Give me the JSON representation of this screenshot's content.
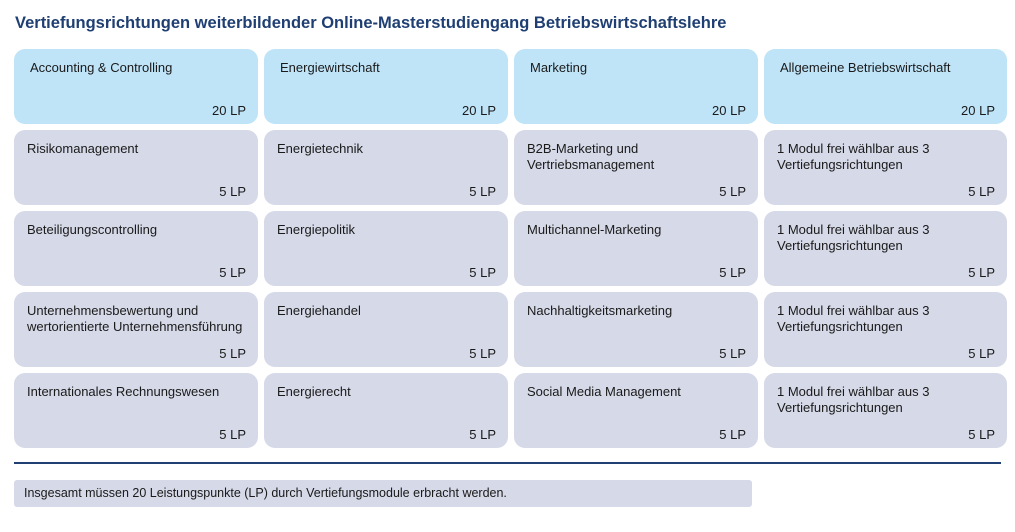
{
  "title": "Vertiefungsrichtungen weiterbildender Online-Masterstudiengang Betriebswirtschaftslehre",
  "columns": [
    {
      "header": {
        "name": "Accounting & Controlling",
        "lp": "20 LP"
      },
      "modules": [
        {
          "name": "Risikomanagement",
          "lp": "5 LP"
        },
        {
          "name": "Beteiligungscontrolling",
          "lp": "5 LP"
        },
        {
          "name": "Unternehmensbewertung und wertorientierte Unternehmensführung",
          "lp": "5 LP"
        },
        {
          "name": "Internationales Rechnungswesen",
          "lp": "5 LP"
        }
      ]
    },
    {
      "header": {
        "name": "Energiewirtschaft",
        "lp": "20 LP"
      },
      "modules": [
        {
          "name": "Energietechnik",
          "lp": "5 LP"
        },
        {
          "name": "Energiepolitik",
          "lp": "5 LP"
        },
        {
          "name": "Energiehandel",
          "lp": "5 LP"
        },
        {
          "name": "Energierecht",
          "lp": "5 LP"
        }
      ]
    },
    {
      "header": {
        "name": "Marketing",
        "lp": "20 LP"
      },
      "modules": [
        {
          "name": "B2B-Marketing und Vertriebsmanagement",
          "lp": "5 LP"
        },
        {
          "name": "Multichannel-Marketing",
          "lp": "5 LP"
        },
        {
          "name": "Nachhaltigkeitsmarketing",
          "lp": "5 LP"
        },
        {
          "name": "Social Media Management",
          "lp": "5 LP"
        }
      ]
    },
    {
      "header": {
        "name": "Allgemeine Betriebswirtschaft",
        "lp": "20 LP"
      },
      "modules": [
        {
          "name": "1 Modul frei wählbar aus 3 Vertiefungsrichtungen",
          "lp": "5 LP"
        },
        {
          "name": "1 Modul frei wählbar aus 3 Vertiefungsrichtungen",
          "lp": "5 LP"
        },
        {
          "name": "1 Modul frei wählbar aus 3 Vertiefungsrichtungen",
          "lp": "5 LP"
        },
        {
          "name": "1 Modul frei wählbar aus 3 Vertiefungsrichtungen",
          "lp": "5 LP"
        }
      ]
    }
  ],
  "footer": "Insgesamt müssen 20 Leistungspunkte (LP) durch Vertiefungsmodule erbracht werden.",
  "colors": {
    "title": "#1f3f73",
    "header_cell": "#bfe4f8",
    "module_cell": "#d6d9e8",
    "divider": "#1f3f73"
  }
}
